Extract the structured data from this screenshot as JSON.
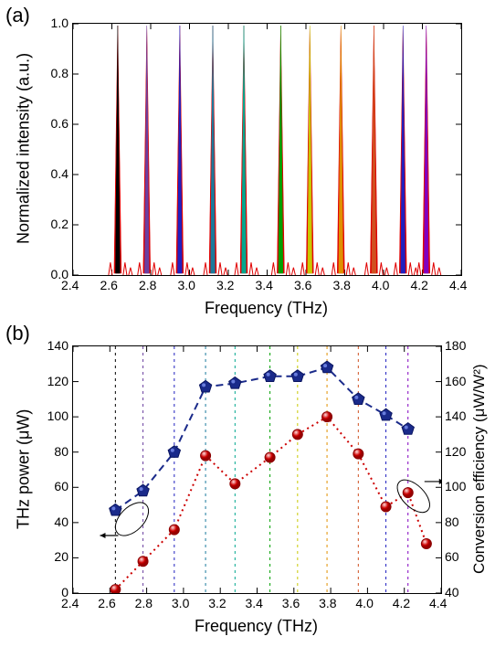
{
  "panel_a": {
    "label": "(a)",
    "chart": {
      "type": "line-spectrum",
      "xlabel": "Frequency (THz)",
      "ylabel": "Normalized intensity (a.u.)",
      "xlim": [
        2.4,
        4.4
      ],
      "ylim": [
        0,
        1.0
      ],
      "xticks": [
        2.4,
        2.6,
        2.8,
        3.0,
        3.2,
        3.4,
        3.6,
        3.8,
        4.0,
        4.2,
        4.4
      ],
      "yticks": [
        0.0,
        0.2,
        0.4,
        0.6,
        0.8,
        1.0
      ],
      "label_fontsize": 18,
      "tick_fontsize": 14,
      "background_color": "#ffffff",
      "border_color": "#000000",
      "peaks": [
        {
          "freq": 2.63,
          "color": "#000000"
        },
        {
          "freq": 2.78,
          "color": "#6b3fa0"
        },
        {
          "freq": 2.95,
          "color": "#2020c0"
        },
        {
          "freq": 3.12,
          "color": "#1a7a9c"
        },
        {
          "freq": 3.28,
          "color": "#00a78e"
        },
        {
          "freq": 3.47,
          "color": "#00a000"
        },
        {
          "freq": 3.62,
          "color": "#c8c800"
        },
        {
          "freq": 3.78,
          "color": "#e09000"
        },
        {
          "freq": 3.95,
          "color": "#d05020"
        },
        {
          "freq": 4.1,
          "color": "#2020c0"
        },
        {
          "freq": 4.22,
          "color": "#8000c0"
        }
      ],
      "overlay_color": "#e00000"
    }
  },
  "panel_b": {
    "label": "(b)",
    "chart": {
      "type": "line-scatter-dual-y",
      "xlabel": "Frequency (THz)",
      "ylabel_left": "THz power (μW)",
      "ylabel_right": "Conversion efficiency (μW/W²)",
      "xlim": [
        2.4,
        4.4
      ],
      "ylim_left": [
        0,
        140
      ],
      "ylim_right": [
        40,
        180
      ],
      "xticks": [
        2.4,
        2.6,
        2.8,
        3.0,
        3.2,
        3.4,
        3.6,
        3.8,
        4.0,
        4.2,
        4.4
      ],
      "yticks_left": [
        0,
        20,
        40,
        60,
        80,
        100,
        120,
        140
      ],
      "yticks_right": [
        40,
        60,
        80,
        100,
        120,
        140,
        160,
        180
      ],
      "label_fontsize": 18,
      "tick_fontsize": 14,
      "background_color": "#ffffff",
      "border_color": "#000000",
      "left_series": {
        "marker": "pentagon",
        "marker_size": 12,
        "marker_face": "#1a2a8a",
        "marker_edge": "#0a1560",
        "line_color": "#1a2a8a",
        "line_style": "dashed",
        "line_width": 2,
        "points": [
          {
            "x": 2.63,
            "y": 47
          },
          {
            "x": 2.78,
            "y": 58
          },
          {
            "x": 2.95,
            "y": 80
          },
          {
            "x": 3.12,
            "y": 117
          },
          {
            "x": 3.28,
            "y": 119
          },
          {
            "x": 3.47,
            "y": 123
          },
          {
            "x": 3.62,
            "y": 123
          },
          {
            "x": 3.78,
            "y": 128
          },
          {
            "x": 3.95,
            "y": 110
          },
          {
            "x": 4.1,
            "y": 101
          },
          {
            "x": 4.22,
            "y": 93
          }
        ]
      },
      "right_series": {
        "marker": "circle",
        "marker_size": 11,
        "marker_face": "#cc0000",
        "marker_edge": "#8b0000",
        "line_color": "#cc0000",
        "line_style": "dotted",
        "line_width": 2,
        "points": [
          {
            "x": 2.63,
            "y": 42
          },
          {
            "x": 2.78,
            "y": 58
          },
          {
            "x": 2.95,
            "y": 76
          },
          {
            "x": 3.12,
            "y": 118
          },
          {
            "x": 3.28,
            "y": 102
          },
          {
            "x": 3.47,
            "y": 117
          },
          {
            "x": 3.62,
            "y": 130
          },
          {
            "x": 3.78,
            "y": 140
          },
          {
            "x": 3.95,
            "y": 119
          },
          {
            "x": 4.1,
            "y": 89
          },
          {
            "x": 4.22,
            "y": 97
          },
          {
            "x": 4.32,
            "y": 68
          }
        ]
      },
      "left_indicator": {
        "color": "#1a2a8a",
        "arrow": "left"
      },
      "right_indicator": {
        "color": "#cc0000",
        "arrow": "right"
      },
      "vlines": [
        {
          "x": 2.63,
          "color": "#000000"
        },
        {
          "x": 2.78,
          "color": "#6b3fa0"
        },
        {
          "x": 2.95,
          "color": "#2020c0"
        },
        {
          "x": 3.12,
          "color": "#1a7a9c"
        },
        {
          "x": 3.28,
          "color": "#00a78e"
        },
        {
          "x": 3.47,
          "color": "#00a000"
        },
        {
          "x": 3.62,
          "color": "#c8c800"
        },
        {
          "x": 3.78,
          "color": "#e09000"
        },
        {
          "x": 3.95,
          "color": "#d05020"
        },
        {
          "x": 4.1,
          "color": "#2020c0"
        },
        {
          "x": 4.22,
          "color": "#8000c0"
        }
      ]
    }
  }
}
